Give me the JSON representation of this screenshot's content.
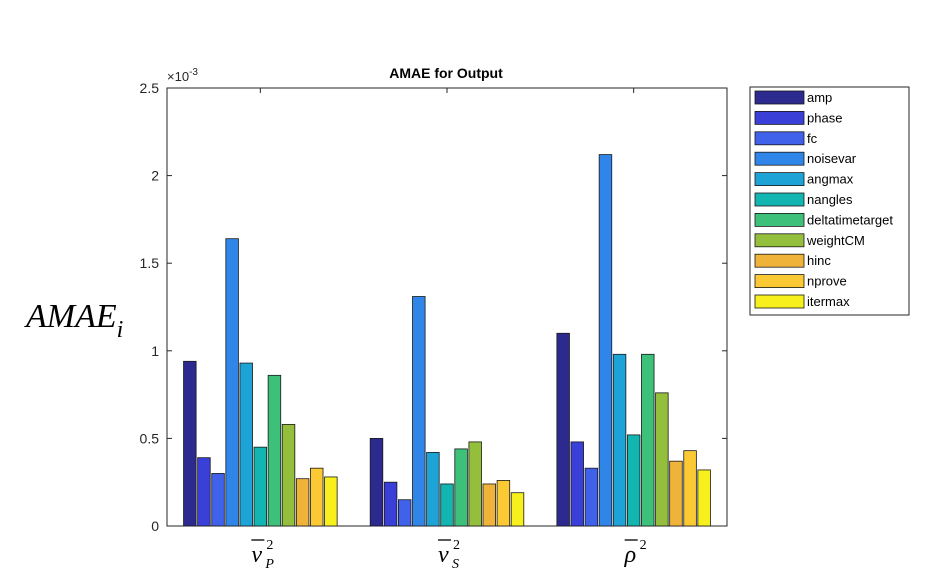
{
  "chart_data": {
    "type": "bar",
    "title": "AMAE for Output",
    "exponent_label": "×10",
    "exponent_power": "-3",
    "ylabel": "AMAE",
    "ylabel_subscript": "i",
    "ylim": [
      0,
      2.5
    ],
    "yticks": [
      0,
      0.5,
      1,
      1.5,
      2,
      2.5
    ],
    "ytick_labels": [
      "0",
      "0.5",
      "1",
      "1.5",
      "2",
      "2.5"
    ],
    "categories": [
      {
        "base": "v",
        "subscript": "P",
        "superscript": "2",
        "overline": true
      },
      {
        "base": "v",
        "subscript": "S",
        "superscript": "2",
        "overline": true
      },
      {
        "base": "ρ",
        "subscript": "",
        "superscript": "2",
        "overline": true
      }
    ],
    "grid": false,
    "legend_position": "outside-right",
    "series": [
      {
        "name": "amp",
        "color": "#2c2a8e",
        "values": [
          0.94,
          0.5,
          1.1
        ]
      },
      {
        "name": "phase",
        "color": "#3a3fd8",
        "values": [
          0.39,
          0.25,
          0.48
        ]
      },
      {
        "name": "fc",
        "color": "#4062ea",
        "values": [
          0.3,
          0.15,
          0.33
        ]
      },
      {
        "name": "noisevar",
        "color": "#2f86e8",
        "values": [
          1.64,
          1.31,
          2.12
        ]
      },
      {
        "name": "angmax",
        "color": "#1ea3d6",
        "values": [
          0.93,
          0.42,
          0.98
        ]
      },
      {
        "name": "nangles",
        "color": "#12b5b0",
        "values": [
          0.45,
          0.24,
          0.52
        ]
      },
      {
        "name": "deltatimetarget",
        "color": "#3cc07a",
        "values": [
          0.86,
          0.44,
          0.98
        ]
      },
      {
        "name": "weightCM",
        "color": "#94bf3c",
        "values": [
          0.58,
          0.48,
          0.76
        ]
      },
      {
        "name": "hinc",
        "color": "#f0b33a",
        "values": [
          0.27,
          0.24,
          0.37
        ]
      },
      {
        "name": "nprove",
        "color": "#fbc933",
        "values": [
          0.33,
          0.26,
          0.43
        ]
      },
      {
        "name": "itermax",
        "color": "#f7f01c",
        "values": [
          0.28,
          0.19,
          0.32
        ]
      }
    ]
  }
}
